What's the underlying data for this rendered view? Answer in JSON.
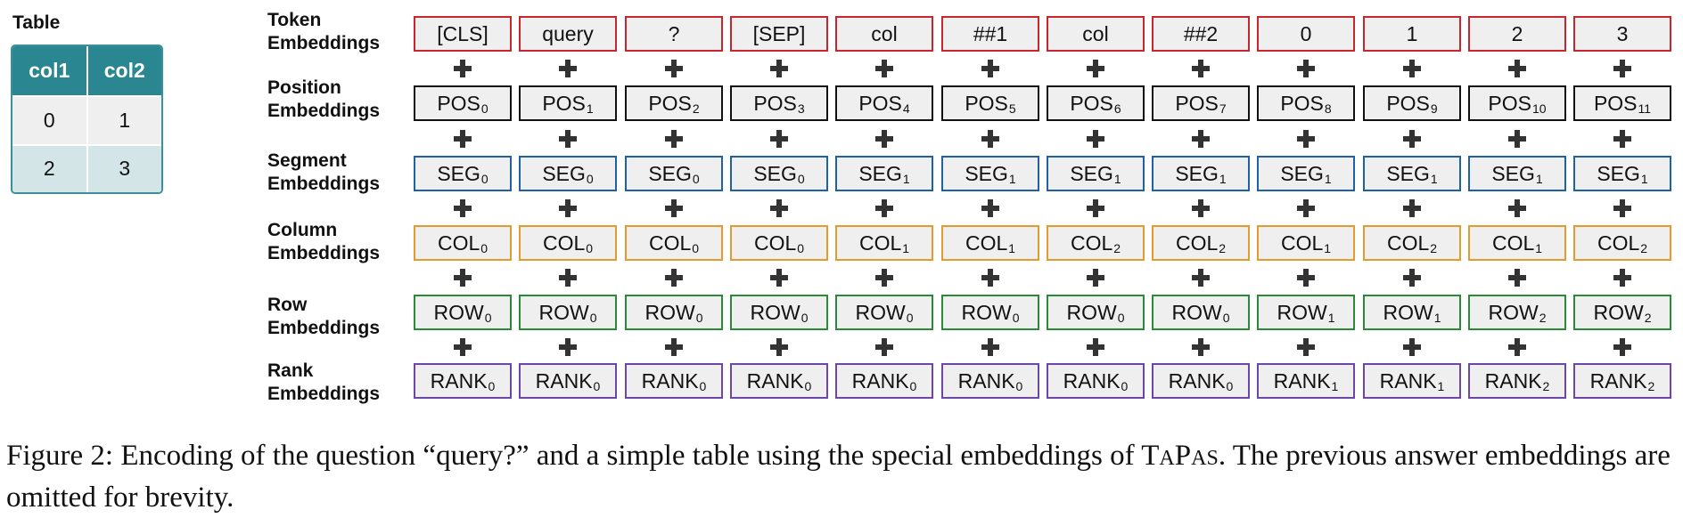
{
  "table": {
    "title": "Table",
    "headers": [
      "col1",
      "col2"
    ],
    "rows": [
      [
        "0",
        "1"
      ],
      [
        "2",
        "3"
      ]
    ]
  },
  "rows": [
    {
      "id": "token",
      "label_line1": "Token",
      "label_line2": "Embeddings",
      "color": "#c8262f",
      "cells": [
        {
          "t": "[CLS]",
          "s": ""
        },
        {
          "t": "query",
          "s": ""
        },
        {
          "t": "?",
          "s": ""
        },
        {
          "t": "[SEP]",
          "s": ""
        },
        {
          "t": "col",
          "s": ""
        },
        {
          "t": "##1",
          "s": ""
        },
        {
          "t": "col",
          "s": ""
        },
        {
          "t": "##2",
          "s": ""
        },
        {
          "t": "0",
          "s": ""
        },
        {
          "t": "1",
          "s": ""
        },
        {
          "t": "2",
          "s": ""
        },
        {
          "t": "3",
          "s": ""
        }
      ]
    },
    {
      "id": "position",
      "label_line1": "Position",
      "label_line2": "Embeddings",
      "color": "#111111",
      "cells": [
        {
          "t": "POS",
          "s": "0"
        },
        {
          "t": "POS",
          "s": "1"
        },
        {
          "t": "POS",
          "s": "2"
        },
        {
          "t": "POS",
          "s": "3"
        },
        {
          "t": "POS",
          "s": "4"
        },
        {
          "t": "POS",
          "s": "5"
        },
        {
          "t": "POS",
          "s": "6"
        },
        {
          "t": "POS",
          "s": "7"
        },
        {
          "t": "POS",
          "s": "8"
        },
        {
          "t": "POS",
          "s": "9"
        },
        {
          "t": "POS",
          "s": "10"
        },
        {
          "t": "POS",
          "s": "11"
        }
      ]
    },
    {
      "id": "segment",
      "label_line1": "Segment",
      "label_line2": "Embeddings",
      "color": "#1f62a3",
      "cells": [
        {
          "t": "SEG",
          "s": "0"
        },
        {
          "t": "SEG",
          "s": "0"
        },
        {
          "t": "SEG",
          "s": "0"
        },
        {
          "t": "SEG",
          "s": "0"
        },
        {
          "t": "SEG",
          "s": "1"
        },
        {
          "t": "SEG",
          "s": "1"
        },
        {
          "t": "SEG",
          "s": "1"
        },
        {
          "t": "SEG",
          "s": "1"
        },
        {
          "t": "SEG",
          "s": "1"
        },
        {
          "t": "SEG",
          "s": "1"
        },
        {
          "t": "SEG",
          "s": "1"
        },
        {
          "t": "SEG",
          "s": "1"
        }
      ]
    },
    {
      "id": "column",
      "label_line1": "Column",
      "label_line2": "Embeddings",
      "color": "#e39b2e",
      "cells": [
        {
          "t": "COL",
          "s": "0"
        },
        {
          "t": "COL",
          "s": "0"
        },
        {
          "t": "COL",
          "s": "0"
        },
        {
          "t": "COL",
          "s": "0"
        },
        {
          "t": "COL",
          "s": "1"
        },
        {
          "t": "COL",
          "s": "1"
        },
        {
          "t": "COL",
          "s": "2"
        },
        {
          "t": "COL",
          "s": "2"
        },
        {
          "t": "COL",
          "s": "1"
        },
        {
          "t": "COL",
          "s": "2"
        },
        {
          "t": "COL",
          "s": "1"
        },
        {
          "t": "COL",
          "s": "2"
        }
      ]
    },
    {
      "id": "row",
      "label_line1": "Row",
      "label_line2": "Embeddings",
      "color": "#2b8a37",
      "cells": [
        {
          "t": "ROW",
          "s": "0"
        },
        {
          "t": "ROW",
          "s": "0"
        },
        {
          "t": "ROW",
          "s": "0"
        },
        {
          "t": "ROW",
          "s": "0"
        },
        {
          "t": "ROW",
          "s": "0"
        },
        {
          "t": "ROW",
          "s": "0"
        },
        {
          "t": "ROW",
          "s": "0"
        },
        {
          "t": "ROW",
          "s": "0"
        },
        {
          "t": "ROW",
          "s": "1"
        },
        {
          "t": "ROW",
          "s": "1"
        },
        {
          "t": "ROW",
          "s": "2"
        },
        {
          "t": "ROW",
          "s": "2"
        }
      ]
    },
    {
      "id": "rank",
      "label_line1": "Rank",
      "label_line2": "Embeddings",
      "color": "#6c47a8",
      "cells": [
        {
          "t": "RANK",
          "s": "0"
        },
        {
          "t": "RANK",
          "s": "0"
        },
        {
          "t": "RANK",
          "s": "0"
        },
        {
          "t": "RANK",
          "s": "0"
        },
        {
          "t": "RANK",
          "s": "0"
        },
        {
          "t": "RANK",
          "s": "0"
        },
        {
          "t": "RANK",
          "s": "0"
        },
        {
          "t": "RANK",
          "s": "0"
        },
        {
          "t": "RANK",
          "s": "1"
        },
        {
          "t": "RANK",
          "s": "1"
        },
        {
          "t": "RANK",
          "s": "2"
        },
        {
          "t": "RANK",
          "s": "2"
        }
      ]
    }
  ],
  "caption": {
    "prefix": "Figure 2: Encoding of the question “query?” and a simple table using the special embeddings of ",
    "model_T": "T",
    "model_A": "A",
    "model_P": "P",
    "model_AS": "AS",
    "suffix": ". The previous answer embeddings are omitted for brevity."
  }
}
